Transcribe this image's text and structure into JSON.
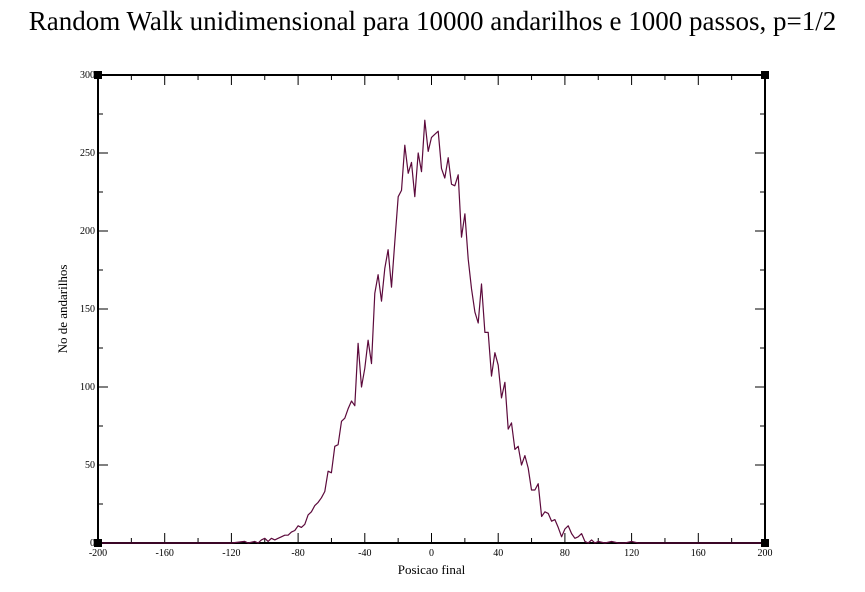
{
  "chart_data": {
    "type": "line",
    "title": "Random Walk unidimensional para 10000 andarilhos e 1000 passos, p=1/2",
    "xlabel": "Posicao final",
    "ylabel": "No de andarilhos",
    "xlim": [
      -200,
      200
    ],
    "ylim": [
      0,
      300
    ],
    "x_ticks": [
      -200,
      -160,
      -120,
      -80,
      -40,
      0,
      40,
      80,
      120,
      160,
      200
    ],
    "y_ticks": [
      0,
      50,
      100,
      150,
      200,
      250,
      300
    ],
    "x_tick_labels": [
      "-200",
      "-160",
      "-120",
      "-80",
      "-40",
      "0",
      "40",
      "80",
      "120",
      "160",
      "200"
    ],
    "y_tick_labels": [
      "0",
      "50",
      "100",
      "150",
      "200",
      "250",
      "300"
    ],
    "grid": false,
    "legend": "none",
    "series": [
      {
        "color": "#5c0a3c",
        "x": [
          -200,
          -130,
          -120,
          -112,
          -110,
          -106,
          -104,
          -102,
          -100,
          -98,
          -96,
          -94,
          -92,
          -90,
          -88,
          -86,
          -84,
          -82,
          -80,
          -78,
          -76,
          -74,
          -72,
          -70,
          -68,
          -66,
          -64,
          -62,
          -60,
          -58,
          -56,
          -54,
          -52,
          -50,
          -48,
          -46,
          -44,
          -42,
          -40,
          -38,
          -36,
          -34,
          -32,
          -30,
          -28,
          -26,
          -24,
          -22,
          -20,
          -18,
          -16,
          -14,
          -12,
          -10,
          -8,
          -6,
          -4,
          -2,
          0,
          2,
          4,
          6,
          8,
          10,
          12,
          14,
          16,
          18,
          20,
          22,
          24,
          26,
          28,
          30,
          32,
          34,
          36,
          38,
          40,
          42,
          44,
          46,
          48,
          50,
          52,
          54,
          56,
          58,
          60,
          62,
          64,
          66,
          68,
          70,
          72,
          74,
          76,
          78,
          80,
          82,
          84,
          86,
          88,
          90,
          92,
          94,
          96,
          98,
          100,
          104,
          108,
          112,
          116,
          120,
          124,
          130,
          200
        ],
        "y": [
          0,
          0,
          0,
          1,
          0,
          1,
          0,
          2,
          3,
          1,
          3,
          2,
          3,
          4,
          5,
          5,
          7,
          8,
          11,
          10,
          12,
          18,
          20,
          24,
          26,
          29,
          33,
          46,
          45,
          62,
          63,
          78,
          80,
          86,
          91,
          88,
          128,
          100,
          112,
          130,
          115,
          160,
          172,
          155,
          176,
          188,
          164,
          193,
          222,
          226,
          255,
          237,
          244,
          222,
          250,
          238,
          271,
          251,
          260,
          262,
          264,
          240,
          234,
          247,
          230,
          229,
          236,
          196,
          211,
          182,
          163,
          148,
          141,
          166,
          135,
          135,
          107,
          122,
          114,
          93,
          103,
          73,
          77,
          60,
          62,
          50,
          56,
          48,
          34,
          34,
          38,
          17,
          20,
          19,
          14,
          15,
          10,
          4,
          9,
          11,
          6,
          3,
          4,
          6,
          1,
          0,
          2,
          0,
          1,
          0,
          1,
          0,
          0,
          1,
          0,
          0,
          0
        ]
      }
    ]
  }
}
